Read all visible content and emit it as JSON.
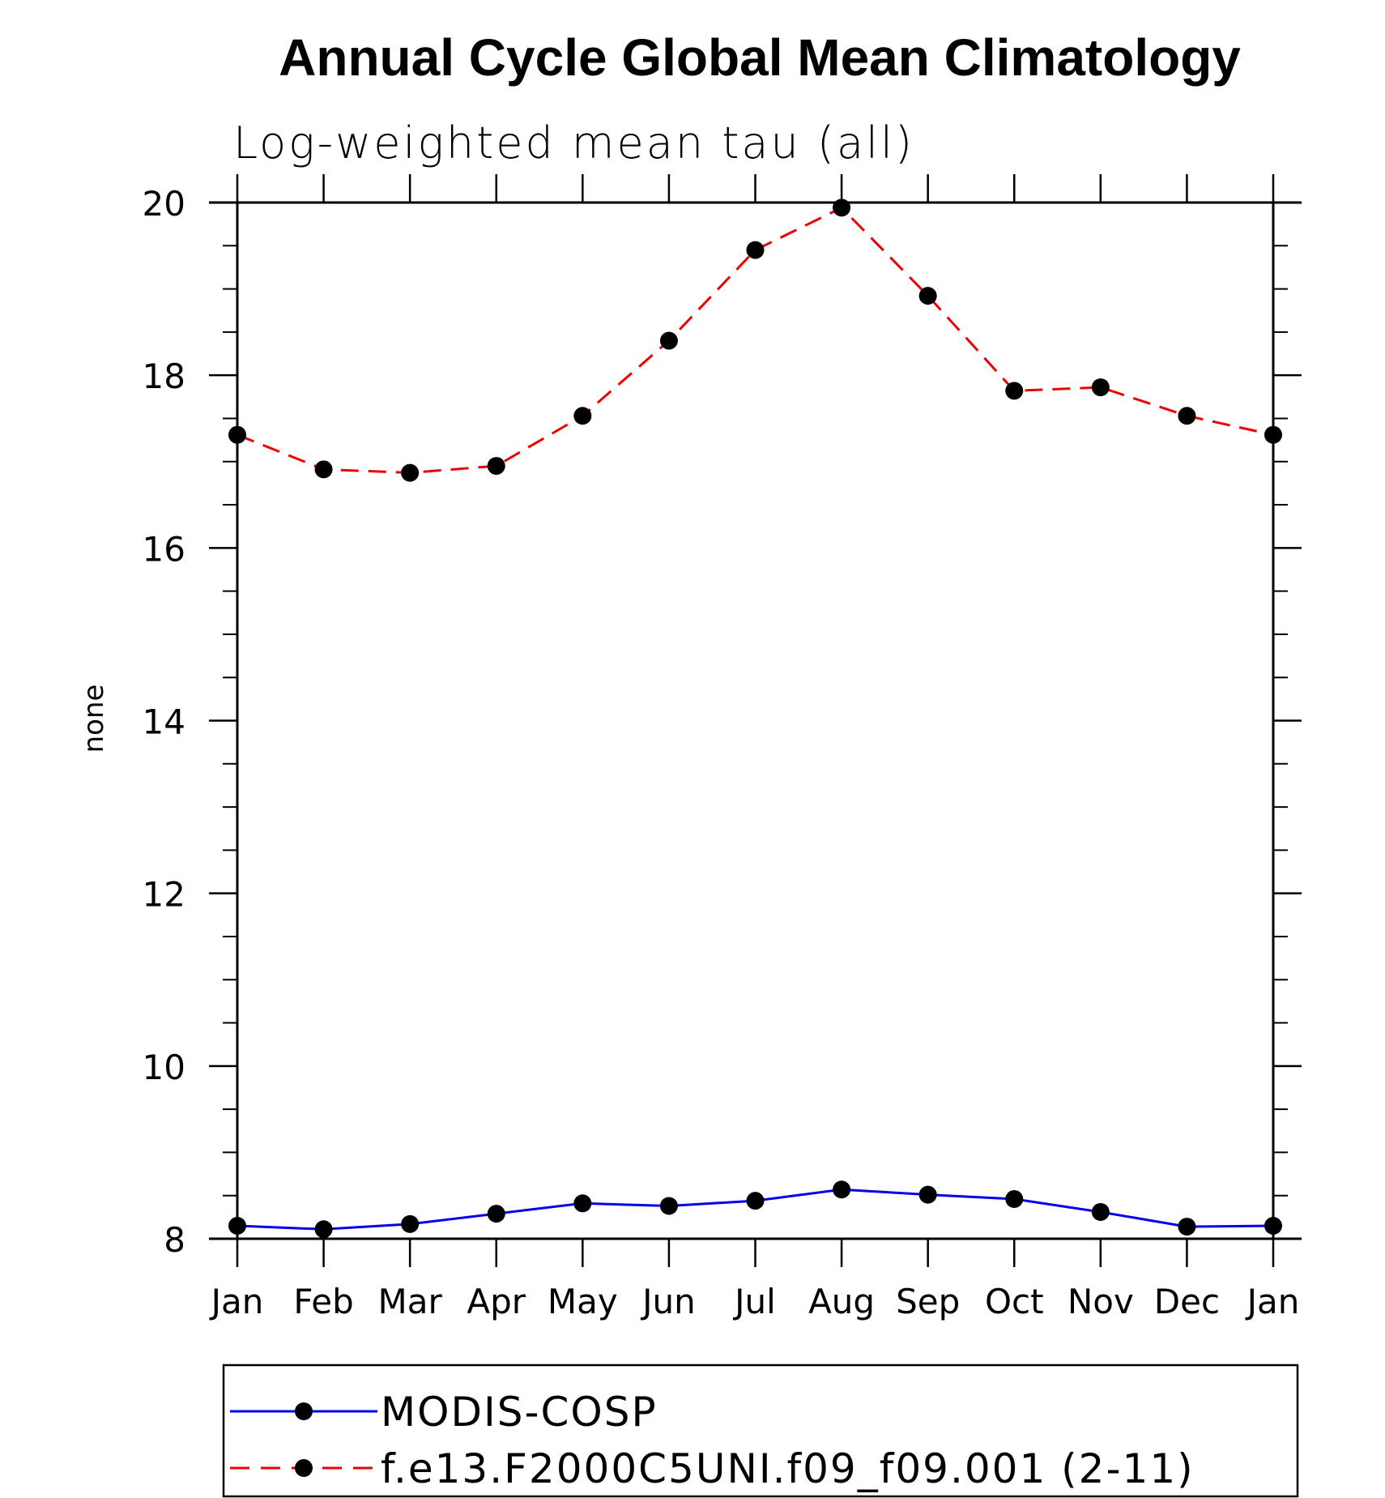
{
  "chart_data": {
    "type": "line",
    "title": "Annual Cycle Global Mean Climatology",
    "subtitle": "Log-weighted mean tau (all)",
    "xlabel": "",
    "ylabel": "none",
    "categories": [
      "Jan",
      "Feb",
      "Mar",
      "Apr",
      "May",
      "Jun",
      "Jul",
      "Aug",
      "Sep",
      "Oct",
      "Nov",
      "Dec",
      "Jan"
    ],
    "ylim": [
      8,
      20
    ],
    "yticks": [
      8,
      10,
      12,
      14,
      16,
      18,
      20
    ],
    "yticks_minor_step": 0.5,
    "grid": false,
    "legend_position": "bottom",
    "series": [
      {
        "name": "MODIS-COSP",
        "color": "#0000ee",
        "line_style": "solid",
        "marker": "filled-circle",
        "values": [
          8.15,
          8.11,
          8.17,
          8.29,
          8.41,
          8.38,
          8.44,
          8.57,
          8.51,
          8.46,
          8.31,
          8.14,
          8.15
        ]
      },
      {
        "name": "f.e13.F2000C5UNI.f09_f09.001 (2-11)",
        "color": "#ee0000",
        "line_style": "dashed",
        "marker": "filled-circle",
        "values": [
          17.31,
          16.91,
          16.87,
          16.95,
          17.53,
          18.4,
          19.45,
          19.94,
          18.92,
          17.82,
          17.86,
          17.53,
          17.31
        ]
      }
    ]
  }
}
